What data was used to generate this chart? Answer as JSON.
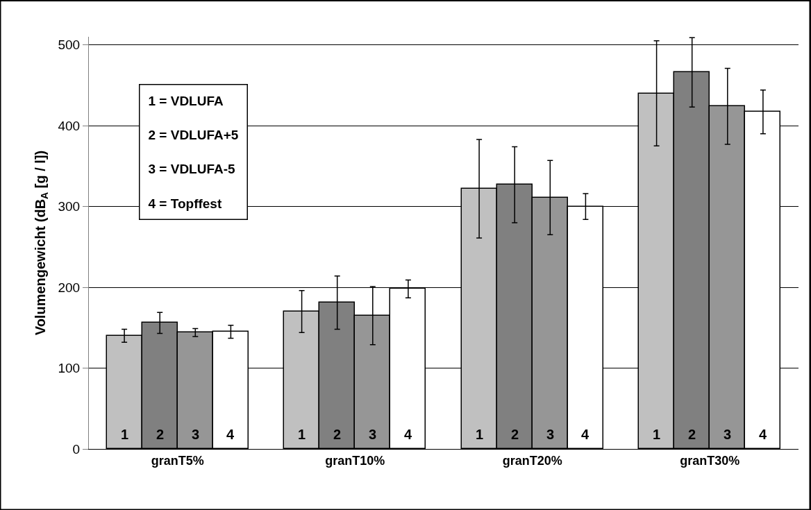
{
  "chart_data": {
    "type": "bar",
    "ylabel": "Volumengewicht (dB$_{A}$ [g / l])",
    "categories": [
      "granT5%",
      "granT10%",
      "granT20%",
      "granT30%"
    ],
    "series": [
      {
        "name": "1",
        "color": "#c0c0c0",
        "values": [
          140,
          170,
          322,
          440
        ],
        "errors": [
          8,
          26,
          61,
          65
        ]
      },
      {
        "name": "2",
        "color": "#808080",
        "values": [
          156,
          181,
          327,
          466
        ],
        "errors": [
          13,
          33,
          47,
          43
        ]
      },
      {
        "name": "3",
        "color": "#969696",
        "values": [
          144,
          165,
          311,
          424
        ],
        "errors": [
          5,
          36,
          46,
          47
        ]
      },
      {
        "name": "4",
        "color": "#ffffff",
        "values": [
          145,
          198,
          300,
          417
        ],
        "errors": [
          8,
          11,
          16,
          27
        ]
      }
    ],
    "ylim": [
      0,
      510
    ],
    "yticks": [
      0,
      100,
      200,
      300,
      400,
      500
    ],
    "grid": "y",
    "legend": false,
    "annotations": [
      "1 = VDLUFA",
      "2 = VDLUFA+5",
      "3 = VDLUFA-5",
      "4 = Topffest"
    ]
  }
}
